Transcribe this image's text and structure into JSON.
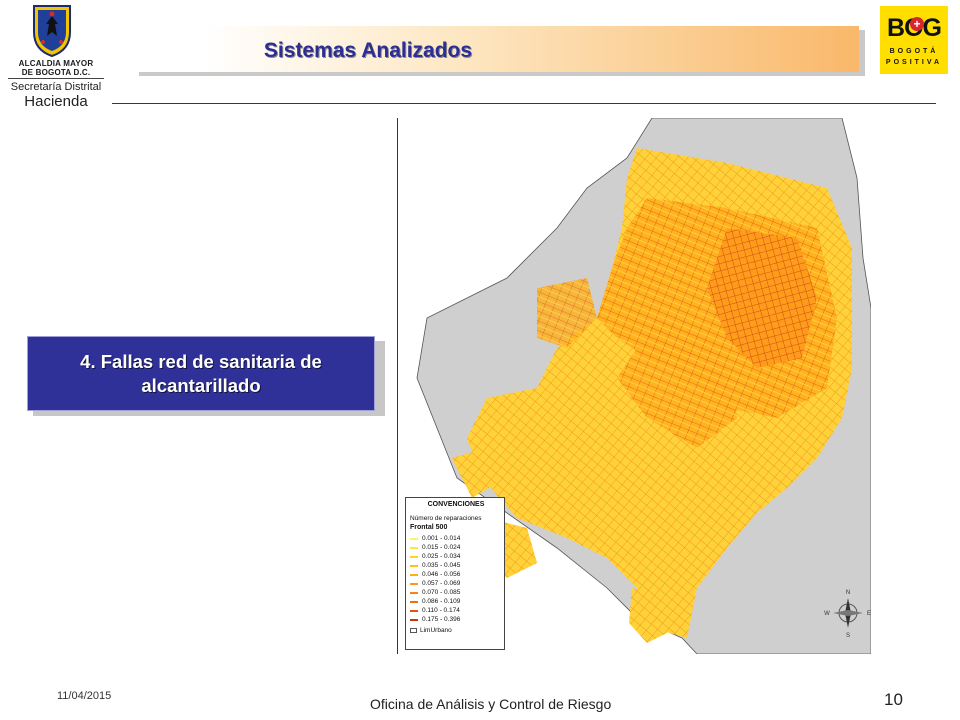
{
  "logo_left": {
    "line1": "ALCALDIA MAYOR",
    "line2": "DE BOGOTA D.C.",
    "line3": "Secretaría Distrital",
    "line4": "Hacienda",
    "icon": "bogota-crest-icon"
  },
  "logo_right": {
    "main": "BOG",
    "sub1": "BOGOTÁ",
    "sub2": "POSITIVA",
    "icon": "bogota-positiva-logo"
  },
  "slide_title": "Sistemas Analizados",
  "callout_box": {
    "text": "4. Fallas red de sanitaria de alcantarillado"
  },
  "map": {
    "legend": {
      "title": "CONVENCIONES",
      "subtitle": "Número de reparaciones",
      "group": "Frontal 500",
      "items": [
        {
          "label": "0.001 - 0.014",
          "color": "#fff36a"
        },
        {
          "label": "0.015 - 0.024",
          "color": "#ffe44a"
        },
        {
          "label": "0.025 - 0.034",
          "color": "#ffd232"
        },
        {
          "label": "0.035 - 0.045",
          "color": "#ffbf22"
        },
        {
          "label": "0.046 - 0.056",
          "color": "#ffad1a"
        },
        {
          "label": "0.057 - 0.069",
          "color": "#fb9a16"
        },
        {
          "label": "0.070 - 0.085",
          "color": "#f58514"
        },
        {
          "label": "0.086 - 0.109",
          "color": "#ee6e12"
        },
        {
          "label": "0.110 - 0.174",
          "color": "#e2550f"
        },
        {
          "label": "0.175 - 0.396",
          "color": "#c7360b"
        }
      ],
      "boundary_label": "LimUrbano"
    },
    "compass": {
      "n": "N",
      "s": "S",
      "e": "E",
      "w": "W"
    }
  },
  "footer": {
    "date": "11/04/2015",
    "center": "Oficina  de Análisis y Control de Riesgo",
    "page": "10"
  }
}
